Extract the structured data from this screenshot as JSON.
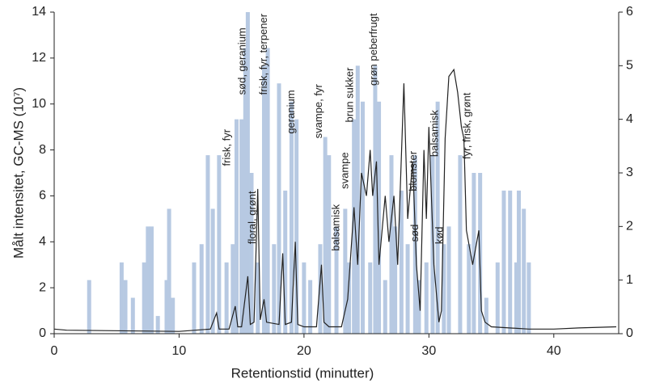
{
  "chart_data": {
    "type": "combo",
    "xlabel": "Retentionstid (minutter)",
    "ylabel": "Målt intensitet, GC-MS (10⁷)",
    "xlim": [
      0,
      45
    ],
    "xticks": [
      0,
      10,
      20,
      30,
      40
    ],
    "ylim": [
      0,
      14
    ],
    "yticks": [
      0,
      2,
      4,
      6,
      8,
      10,
      12,
      14
    ],
    "y2lim": [
      0,
      6
    ],
    "y2ticks": [
      0,
      1,
      2,
      3,
      4,
      5,
      6
    ],
    "bars": {
      "color": "#b7c9e2",
      "axis": "y2",
      "x": [
        2.8,
        5.4,
        5.7,
        6.3,
        7.2,
        7.5,
        7.8,
        8.3,
        9.0,
        9.2,
        9.5,
        11.2,
        11.8,
        12.3,
        12.7,
        13.2,
        13.8,
        14.3,
        14.6,
        15.0,
        15.3,
        15.5,
        15.8,
        16.3,
        16.8,
        17.1,
        17.6,
        18.0,
        18.5,
        19.0,
        19.4,
        20.0,
        20.5,
        21.3,
        21.7,
        22.0,
        22.6,
        23.3,
        23.6,
        24.0,
        24.3,
        24.7,
        25.3,
        25.7,
        26.0,
        26.5,
        27.0,
        27.3,
        27.8,
        28.3,
        28.9,
        29.2,
        29.8,
        30.3,
        30.7,
        31.2,
        31.6,
        32.5,
        33.2,
        33.6,
        34.1,
        34.6,
        35.5,
        36.0,
        36.5,
        37.0,
        37.2,
        37.6,
        38.0
      ],
      "values": [
        1.0,
        1.33,
        1.0,
        0.67,
        1.33,
        2.0,
        2.0,
        0.33,
        1.0,
        2.33,
        0.67,
        1.33,
        1.67,
        3.33,
        2.33,
        3.33,
        1.33,
        1.67,
        4.0,
        4.0,
        5.33,
        6.0,
        3.0,
        1.33,
        5.0,
        5.33,
        1.67,
        4.67,
        2.67,
        4.33,
        4.0,
        1.33,
        1.0,
        1.67,
        3.67,
        3.33,
        2.0,
        2.33,
        1.33,
        4.0,
        5.0,
        4.33,
        1.33,
        5.0,
        4.33,
        1.0,
        3.33,
        2.0,
        2.67,
        1.67,
        3.33,
        1.0,
        1.33,
        3.33,
        4.33,
        1.67,
        2.0,
        3.33,
        1.67,
        3.0,
        3.0,
        0.67,
        1.33,
        2.67,
        2.67,
        1.33,
        2.67,
        2.33,
        1.33
      ]
    },
    "line": {
      "color": "#222222",
      "x": [
        0,
        1,
        10,
        12.5,
        13,
        13.2,
        14,
        14.5,
        14.7,
        15,
        15.5,
        15.7,
        16,
        16.3,
        16.5,
        16.8,
        17,
        18,
        18.3,
        18.5,
        19,
        19.3,
        19.5,
        20,
        21,
        21.4,
        21.6,
        22,
        23,
        23.5,
        24,
        24.3,
        24.6,
        25,
        25.3,
        25.5,
        25.8,
        26,
        26.5,
        26.8,
        27.2,
        27.5,
        28,
        28.3,
        28.7,
        29,
        29.3,
        29.6,
        29.8,
        30,
        30.4,
        30.8,
        31,
        31.3,
        31.6,
        32,
        32.3,
        32.6,
        32.8,
        33,
        33.5,
        34,
        34.2,
        34.5,
        35,
        38,
        40,
        42,
        45
      ],
      "values": [
        0.2,
        0.15,
        0.1,
        0.2,
        0.9,
        0.2,
        0.2,
        1.2,
        0.3,
        0.3,
        2.5,
        0.4,
        0.5,
        6.3,
        0.6,
        1.5,
        0.5,
        0.4,
        3.5,
        0.4,
        0.5,
        4.0,
        0.4,
        0.3,
        0.3,
        3.0,
        0.5,
        0.3,
        0.3,
        1.5,
        5.5,
        3.0,
        7.0,
        6.0,
        8.0,
        6.0,
        7.5,
        3.0,
        6.0,
        4.0,
        6.0,
        3.0,
        10.9,
        5.0,
        7.5,
        3.0,
        1.0,
        8.0,
        5.0,
        9.0,
        3.0,
        0.5,
        1.0,
        8.5,
        11.2,
        11.5,
        10.5,
        9.0,
        8.5,
        4.5,
        3.0,
        4.5,
        1.0,
        0.5,
        0.3,
        0.2,
        0.2,
        0.25,
        0.3
      ]
    },
    "annotations": [
      {
        "text": "frisk, fyr",
        "x": 13.85,
        "y": 7.3
      },
      {
        "text": "sød, geranium",
        "x": 15.1,
        "y": 10.4
      },
      {
        "text": "frisk, fyr, terpener",
        "x": 16.8,
        "y": 10.4
      },
      {
        "text": "floral, grønt",
        "x": 15.9,
        "y": 3.9
      },
      {
        "text": "geranium",
        "x": 19.0,
        "y": 8.7
      },
      {
        "text": "svampe, fyr",
        "x": 21.2,
        "y": 8.5
      },
      {
        "text": "balsamisk",
        "x": 22.6,
        "y": 3.6
      },
      {
        "text": "svampe",
        "x": 23.3,
        "y": 6.3
      },
      {
        "text": "brun sukker",
        "x": 23.7,
        "y": 9.2
      },
      {
        "text": "grøn peberfrugt",
        "x": 25.6,
        "y": 10.8
      },
      {
        "text": "blomster",
        "x": 28.8,
        "y": 6.2
      },
      {
        "text": "sød",
        "x": 28.9,
        "y": 4.0
      },
      {
        "text": "balsamisk",
        "x": 30.5,
        "y": 7.7
      },
      {
        "text": "kød",
        "x": 30.9,
        "y": 3.9
      },
      {
        "text": "fyr, frisk, grønt",
        "x": 33.1,
        "y": 7.6
      }
    ]
  }
}
